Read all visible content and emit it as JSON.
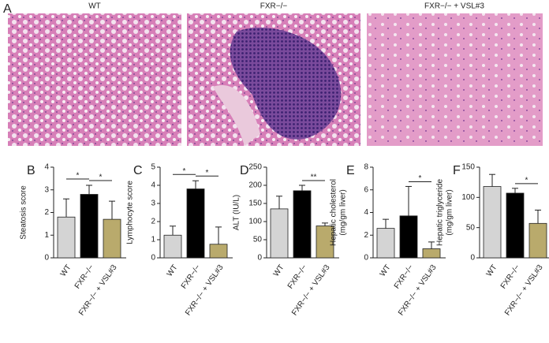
{
  "panel_a": {
    "letter": "A",
    "captions": [
      "WT",
      "FXR−/−",
      "FXR−/− + VSL#3"
    ]
  },
  "chart_data": [
    {
      "type": "bar",
      "letter": "B",
      "ylabel": [
        "Steatosis score"
      ],
      "categories": [
        "WT",
        "FXR−/−",
        "FXR−/− + VSL#3"
      ],
      "values": [
        1.8,
        2.8,
        1.7
      ],
      "errors": [
        0.8,
        0.4,
        0.8
      ],
      "colors": [
        "#d4d4d4",
        "#000000",
        "#b9aa6c"
      ],
      "ylim": [
        0,
        4
      ],
      "yticks": [
        0,
        1,
        2,
        3,
        4
      ],
      "significance": [
        {
          "between": [
            "WT",
            "FXR−/−"
          ],
          "label": "*"
        },
        {
          "between": [
            "FXR−/−",
            "FXR−/− + VSL#3"
          ],
          "label": "*"
        }
      ]
    },
    {
      "type": "bar",
      "letter": "C",
      "ylabel": [
        "Lymphocyte score"
      ],
      "categories": [
        "WT",
        "FXR−/−",
        "FXR−/− + VSL#3"
      ],
      "values": [
        1.25,
        3.8,
        0.75
      ],
      "errors": [
        0.5,
        0.45,
        0.95
      ],
      "colors": [
        "#d4d4d4",
        "#000000",
        "#b9aa6c"
      ],
      "ylim": [
        0,
        5
      ],
      "yticks": [
        0,
        1,
        2,
        3,
        4,
        5
      ],
      "significance": [
        {
          "between": [
            "WT",
            "FXR−/−"
          ],
          "label": "*"
        },
        {
          "between": [
            "FXR−/−",
            "FXR−/− + VSL#3"
          ],
          "label": "*"
        }
      ]
    },
    {
      "type": "bar",
      "letter": "D",
      "ylabel": [
        "ALT (IU/L)"
      ],
      "categories": [
        "WT",
        "FXR−/−",
        "FXR−/− + VSL#3"
      ],
      "values": [
        135,
        185,
        88
      ],
      "errors": [
        35,
        15,
        8
      ],
      "colors": [
        "#d4d4d4",
        "#000000",
        "#b9aa6c"
      ],
      "ylim": [
        0,
        250
      ],
      "yticks": [
        0,
        50,
        100,
        150,
        200,
        250
      ],
      "significance": [
        {
          "between": [
            "FXR−/−",
            "FXR−/− + VSL#3"
          ],
          "label": "**"
        }
      ]
    },
    {
      "type": "bar",
      "letter": "E",
      "ylabel": [
        "Hepatic cholesterol",
        "(mg/gm liver)"
      ],
      "categories": [
        "WT",
        "FXR−/−",
        "FXR−/− + VSL#3"
      ],
      "values": [
        2.6,
        3.7,
        0.8
      ],
      "errors": [
        0.8,
        2.6,
        0.6
      ],
      "colors": [
        "#d4d4d4",
        "#000000",
        "#b9aa6c"
      ],
      "ylim": [
        0,
        8
      ],
      "yticks": [
        0,
        2,
        4,
        6,
        8
      ],
      "significance": [
        {
          "between": [
            "FXR−/−",
            "FXR−/− + VSL#3"
          ],
          "label": "*"
        }
      ]
    },
    {
      "type": "bar",
      "letter": "F",
      "ylabel": [
        "Hepatic triglyceride",
        "(mg/gm liver)"
      ],
      "categories": [
        "WT",
        "FXR−/−",
        "FXR−/− + VSL#3"
      ],
      "values": [
        118,
        107,
        57
      ],
      "errors": [
        20,
        8,
        22
      ],
      "colors": [
        "#d4d4d4",
        "#000000",
        "#b9aa6c"
      ],
      "ylim": [
        0,
        150
      ],
      "yticks": [
        0,
        50,
        100,
        150
      ],
      "significance": [
        {
          "between": [
            "FXR−/−",
            "FXR−/− + VSL#3"
          ],
          "label": "*"
        }
      ]
    }
  ]
}
